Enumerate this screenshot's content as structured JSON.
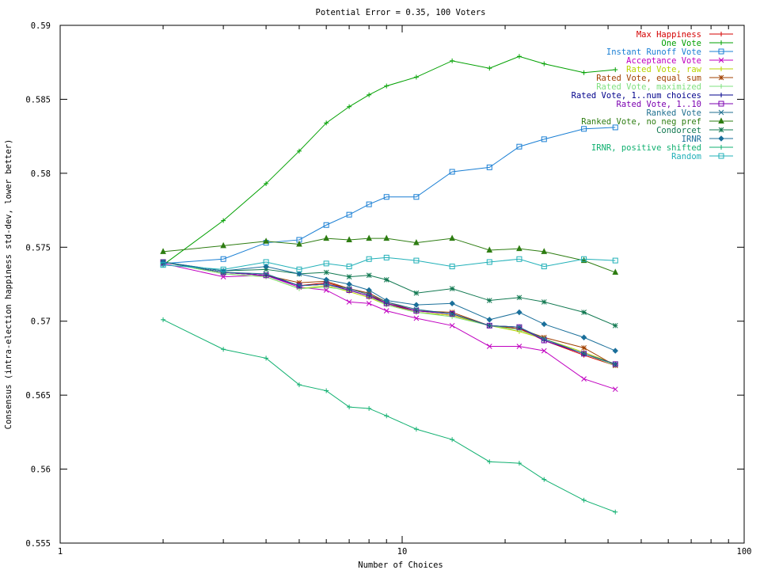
{
  "chart_data": {
    "type": "line",
    "title": "Potential Error = 0.35, 100 Voters",
    "xlabel": "Number of Choices",
    "ylabel": "Consensus (intra-election happiness std-dev, lower better)",
    "xscale": "log",
    "xlim": [
      1,
      100
    ],
    "ylim": [
      0.555,
      0.59
    ],
    "xticks": [
      {
        "value": 1,
        "label": "1"
      },
      {
        "value": 10,
        "label": "10"
      },
      {
        "value": 100,
        "label": "100"
      }
    ],
    "yticks": [
      {
        "value": 0.555,
        "label": "0.555"
      },
      {
        "value": 0.56,
        "label": "0.56"
      },
      {
        "value": 0.565,
        "label": "0.565"
      },
      {
        "value": 0.57,
        "label": "0.57"
      },
      {
        "value": 0.575,
        "label": "0.575"
      },
      {
        "value": 0.58,
        "label": "0.58"
      },
      {
        "value": 0.585,
        "label": "0.585"
      },
      {
        "value": 0.59,
        "label": "0.59"
      }
    ],
    "grid": false,
    "legend_position": "top-right",
    "x": [
      2,
      3,
      4,
      5,
      6,
      7,
      8,
      9,
      11,
      14,
      18,
      22,
      26,
      34,
      42
    ],
    "series": [
      {
        "name": "Max Happiness",
        "color": "#d40000",
        "marker": "plus",
        "values": [
          0.574,
          0.5733,
          0.5731,
          0.5724,
          0.5726,
          0.5722,
          0.5718,
          0.5712,
          0.5706,
          0.5704,
          0.5697,
          0.5695,
          0.5687,
          0.5677,
          0.567
        ]
      },
      {
        "name": "One Vote",
        "color": "#00a000",
        "marker": "plus",
        "values": [
          0.5738,
          0.5768,
          0.5793,
          0.5815,
          0.5834,
          0.5845,
          0.5853,
          0.5859,
          0.5865,
          0.5876,
          0.5871,
          0.5879,
          0.5874,
          0.5868,
          0.587
        ]
      },
      {
        "name": "Instant Runoff Vote",
        "color": "#1a7fd4",
        "marker": "square",
        "values": [
          0.5739,
          0.5742,
          0.5753,
          0.5755,
          0.5765,
          0.5772,
          0.5779,
          0.5784,
          0.5784,
          0.5801,
          0.5804,
          0.5818,
          0.5823,
          0.583,
          0.5831
        ]
      },
      {
        "name": "Acceptance Vote",
        "color": "#c000c0",
        "marker": "x",
        "values": [
          0.5739,
          0.573,
          0.5731,
          0.5723,
          0.5721,
          0.5713,
          0.5712,
          0.5707,
          0.5702,
          0.5697,
          0.5683,
          0.5683,
          0.568,
          0.5661,
          0.5654
        ]
      },
      {
        "name": "Rated Vote, raw",
        "color": "#b8d400",
        "marker": "plus",
        "values": [
          0.574,
          0.5732,
          0.573,
          0.5722,
          0.5724,
          0.572,
          0.5716,
          0.5711,
          0.5706,
          0.5704,
          0.5697,
          0.5693,
          0.5688,
          0.5679,
          0.5671
        ]
      },
      {
        "name": "Rated Vote, equal sum",
        "color": "#a04000",
        "marker": "star",
        "values": [
          0.574,
          0.5733,
          0.5731,
          0.5726,
          0.5727,
          0.5722,
          0.5719,
          0.5713,
          0.5707,
          0.5706,
          0.5697,
          0.5695,
          0.5689,
          0.5682,
          0.567
        ]
      },
      {
        "name": "Rated Vote, maximized",
        "color": "#7fe07f",
        "marker": "plus",
        "values": [
          0.574,
          0.5732,
          0.573,
          0.5722,
          0.5723,
          0.5721,
          0.5717,
          0.5711,
          0.5706,
          0.5703,
          0.5697,
          0.5694,
          0.5688,
          0.5678,
          0.567
        ]
      },
      {
        "name": "Rated Vote, 1..num choices",
        "color": "#00008b",
        "marker": "plus",
        "values": [
          0.574,
          0.5733,
          0.5731,
          0.5724,
          0.5725,
          0.5721,
          0.5717,
          0.5712,
          0.5707,
          0.5705,
          0.5697,
          0.5696,
          0.5687,
          0.5678,
          0.5671
        ]
      },
      {
        "name": "Rated Vote, 1..10",
        "color": "#7b00b0",
        "marker": "square",
        "values": [
          0.574,
          0.5733,
          0.5731,
          0.5724,
          0.5725,
          0.5721,
          0.5717,
          0.5712,
          0.5707,
          0.5705,
          0.5697,
          0.5696,
          0.5687,
          0.5678,
          0.5671
        ]
      },
      {
        "name": "Ranked Vote",
        "color": "#1f6f8f",
        "marker": "x",
        "values": [
          0.574,
          0.5733,
          0.5732,
          0.5724,
          0.5725,
          0.5722,
          0.5718,
          0.5713,
          0.5708,
          0.5705,
          0.5697,
          0.5696,
          0.5688,
          0.5678,
          0.5671
        ]
      },
      {
        "name": "Ranked Vote, no neg pref",
        "color": "#2e7d12",
        "marker": "triangle",
        "values": [
          0.5747,
          0.5751,
          0.5754,
          0.5752,
          0.5756,
          0.5755,
          0.5756,
          0.5756,
          0.5753,
          0.5756,
          0.5748,
          0.5749,
          0.5747,
          0.5741,
          0.5733
        ]
      },
      {
        "name": "Condorcet",
        "color": "#107850",
        "marker": "star",
        "values": [
          0.574,
          0.5734,
          0.5735,
          0.5732,
          0.5733,
          0.573,
          0.5731,
          0.5728,
          0.5719,
          0.5722,
          0.5714,
          0.5716,
          0.5713,
          0.5706,
          0.5697
        ]
      },
      {
        "name": "IRNR",
        "color": "#1a6f9a",
        "marker": "diamond",
        "values": [
          0.574,
          0.5734,
          0.5737,
          0.5732,
          0.5728,
          0.5725,
          0.5721,
          0.5714,
          0.5711,
          0.5712,
          0.5701,
          0.5706,
          0.5698,
          0.5689,
          0.568
        ]
      },
      {
        "name": "IRNR, positive shifted",
        "color": "#10b070",
        "marker": "plus",
        "values": [
          0.5701,
          0.5681,
          0.5675,
          0.5657,
          0.5653,
          0.5642,
          0.5641,
          0.5636,
          0.5627,
          0.562,
          0.5605,
          0.5604,
          0.5593,
          0.5579,
          0.5571
        ]
      },
      {
        "name": "Random",
        "color": "#20b0b8",
        "marker": "square",
        "values": [
          0.5738,
          0.5735,
          0.574,
          0.5735,
          0.5739,
          0.5737,
          0.5742,
          0.5743,
          0.5741,
          0.5737,
          0.574,
          0.5742,
          0.5737,
          0.5742,
          0.5741
        ]
      }
    ]
  }
}
